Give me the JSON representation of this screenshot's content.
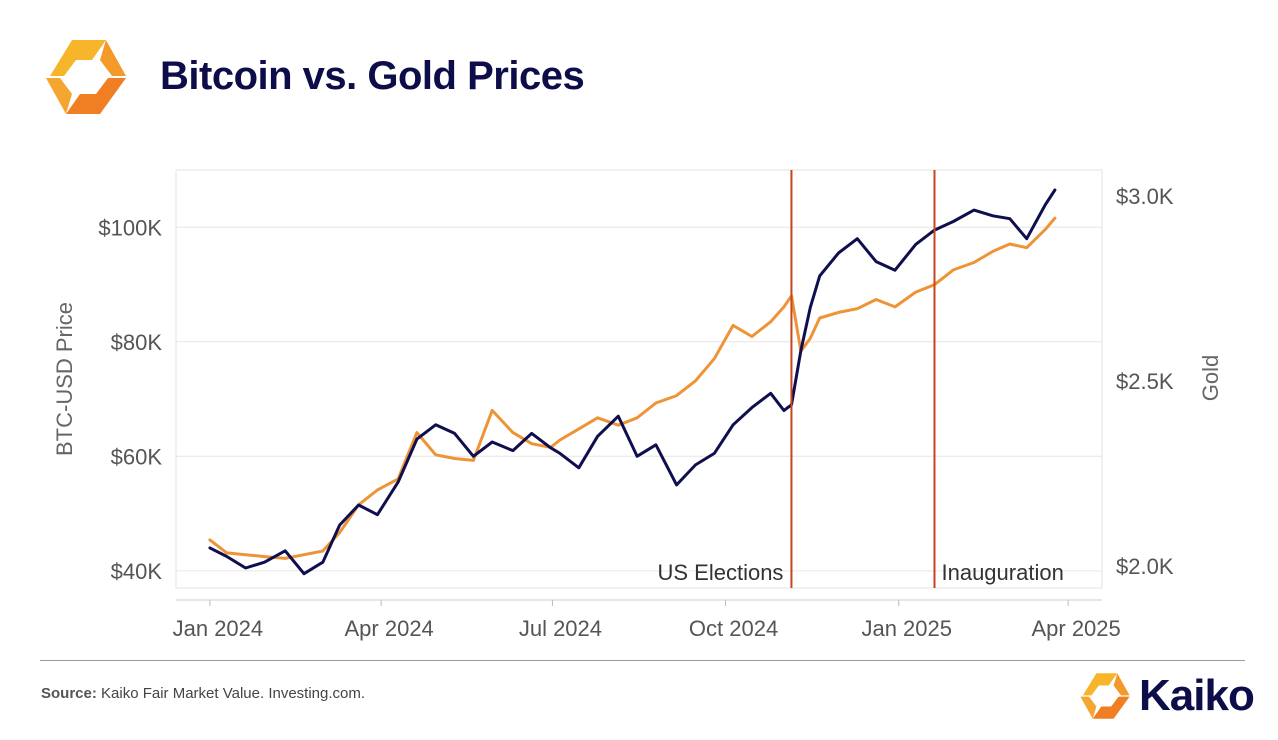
{
  "page": {
    "title": "Bitcoin vs. Gold Prices"
  },
  "colors": {
    "btc": "#0f0f4f",
    "gold": "#ee9437",
    "event_line": "#c8441c",
    "logo": "#f39a2a"
  },
  "icons": {
    "logo": "kaiko-logo-icon"
  },
  "footer": {
    "source_label": "Source:",
    "source_text": "Kaiko Fair Market Value. Investing.com.",
    "brand": "Kaiko"
  },
  "chart_data": {
    "type": "line",
    "title": "",
    "ylabel_left": "BTC-USD Price",
    "ylabel_right": "Gold",
    "x_range": [
      "2023-12-14",
      "2025-04-19"
    ],
    "ylim_left": [
      37000,
      110000
    ],
    "ylim_right": [
      1940,
      3070
    ],
    "grid": "horizontal",
    "x_ticks": [
      {
        "date": "2024-01-01",
        "label": "Jan 2024"
      },
      {
        "date": "2024-04-01",
        "label": "Apr 2024"
      },
      {
        "date": "2024-07-01",
        "label": "Jul 2024"
      },
      {
        "date": "2024-10-01",
        "label": "Oct 2024"
      },
      {
        "date": "2025-01-01",
        "label": "Jan 2025"
      },
      {
        "date": "2025-04-01",
        "label": "Apr 2025"
      }
    ],
    "y_ticks_left": [
      {
        "value": 40000,
        "label": "$40K"
      },
      {
        "value": 60000,
        "label": "$60K"
      },
      {
        "value": 80000,
        "label": "$80K"
      },
      {
        "value": 100000,
        "label": "$100K"
      }
    ],
    "y_ticks_right": [
      {
        "value": 2000,
        "label": "$2.0K"
      },
      {
        "value": 2500,
        "label": "$2.5K"
      },
      {
        "value": 3000,
        "label": "$3.0K"
      }
    ],
    "events": [
      {
        "date": "2024-11-05",
        "label": "US Elections"
      },
      {
        "date": "2025-01-20",
        "label": "Inauguration"
      }
    ],
    "series": [
      {
        "axis": "left",
        "x": [
          "2024-01-01",
          "2024-01-10",
          "2024-01-20",
          "2024-01-30",
          "2024-02-10",
          "2024-02-20",
          "2024-03-01",
          "2024-03-10",
          "2024-03-20",
          "2024-03-30",
          "2024-04-10",
          "2024-04-20",
          "2024-04-30",
          "2024-05-10",
          "2024-05-20",
          "2024-05-30",
          "2024-06-10",
          "2024-06-20",
          "2024-06-30",
          "2024-07-05",
          "2024-07-15",
          "2024-07-25",
          "2024-08-05",
          "2024-08-15",
          "2024-08-25",
          "2024-09-05",
          "2024-09-15",
          "2024-09-25",
          "2024-10-05",
          "2024-10-15",
          "2024-10-25",
          "2024-11-01",
          "2024-11-05",
          "2024-11-10",
          "2024-11-15",
          "2024-11-20",
          "2024-11-30",
          "2024-12-10",
          "2024-12-20",
          "2024-12-30",
          "2025-01-10",
          "2025-01-20",
          "2025-01-30",
          "2025-02-10",
          "2025-02-20",
          "2025-03-01",
          "2025-03-10",
          "2025-03-20",
          "2025-03-25"
        ],
        "values": [
          44000,
          42500,
          40500,
          41500,
          43500,
          39500,
          41500,
          48000,
          51500,
          49800,
          55500,
          63000,
          65500,
          64000,
          60000,
          62500,
          61000,
          64000,
          61500,
          60500,
          58000,
          63500,
          67000,
          60000,
          62000,
          55000,
          58500,
          60500,
          65500,
          68500,
          71000,
          68000,
          69000,
          78500,
          86000,
          91500,
          95500,
          98000,
          94000,
          92500,
          97000,
          99500,
          101000,
          103000,
          102000,
          101500,
          98000,
          104000,
          106500
        ]
      },
      {
        "axis": "right",
        "x": [
          "2024-01-01",
          "2024-01-10",
          "2024-01-20",
          "2024-01-30",
          "2024-02-10",
          "2024-02-20",
          "2024-03-01",
          "2024-03-10",
          "2024-03-20",
          "2024-03-30",
          "2024-04-10",
          "2024-04-20",
          "2024-04-30",
          "2024-05-10",
          "2024-05-20",
          "2024-05-30",
          "2024-06-10",
          "2024-06-20",
          "2024-06-30",
          "2024-07-05",
          "2024-07-15",
          "2024-07-25",
          "2024-08-05",
          "2024-08-15",
          "2024-08-25",
          "2024-09-05",
          "2024-09-15",
          "2024-09-25",
          "2024-10-05",
          "2024-10-15",
          "2024-10-25",
          "2024-11-01",
          "2024-11-05",
          "2024-11-10",
          "2024-11-15",
          "2024-11-20",
          "2024-11-30",
          "2024-12-10",
          "2024-12-20",
          "2024-12-30",
          "2025-01-10",
          "2025-01-20",
          "2025-01-30",
          "2025-02-10",
          "2025-02-20",
          "2025-03-01",
          "2025-03-10",
          "2025-03-20",
          "2025-03-25"
        ],
        "values": [
          2070,
          2035,
          2030,
          2025,
          2020,
          2030,
          2040,
          2090,
          2165,
          2205,
          2235,
          2360,
          2300,
          2290,
          2285,
          2420,
          2360,
          2330,
          2320,
          2340,
          2370,
          2400,
          2380,
          2400,
          2440,
          2460,
          2500,
          2560,
          2650,
          2620,
          2660,
          2700,
          2730,
          2580,
          2615,
          2670,
          2685,
          2695,
          2720,
          2700,
          2740,
          2760,
          2800,
          2820,
          2850,
          2870,
          2860,
          2910,
          2940
        ]
      }
    ]
  }
}
